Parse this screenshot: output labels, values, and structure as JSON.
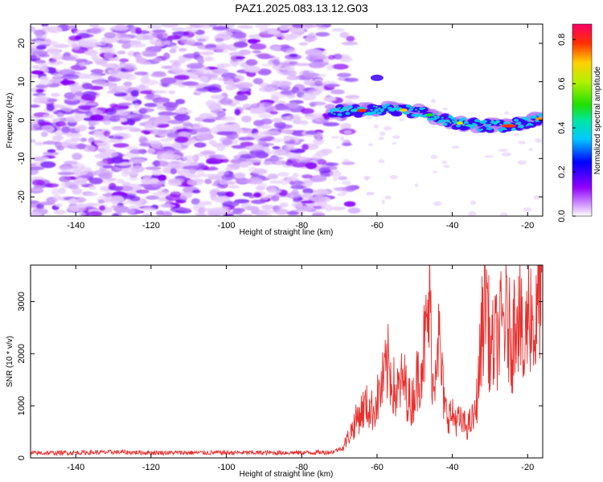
{
  "title": "PAZ1.2025.083.13.12.G03",
  "chart_data": [
    {
      "type": "heatmap",
      "xlabel": "Height of straight line (km)",
      "ylabel": "Frequency (Hz)",
      "xlim": [
        -152,
        -16
      ],
      "ylim": [
        -25,
        25
      ],
      "xticks": [
        -140,
        -120,
        -100,
        -80,
        -60,
        -40,
        -20
      ],
      "yticks": [
        -20,
        -10,
        0,
        10,
        20
      ],
      "colorbar": {
        "label": "Normalized spectral amplitude",
        "range": [
          0,
          0.87
        ],
        "ticks": [
          0.0,
          0.2,
          0.4,
          0.6,
          0.8
        ]
      },
      "features": {
        "noise_region_x": [
          -152,
          -72
        ],
        "signal_ridge": [
          {
            "x": -72,
            "y": 2.5
          },
          {
            "x": -64,
            "y": 2.5
          },
          {
            "x": -56,
            "y": 3
          },
          {
            "x": -48,
            "y": 2
          },
          {
            "x": -40,
            "y": -0.5
          },
          {
            "x": -32,
            "y": -1.5
          },
          {
            "x": -25,
            "y": -1.5
          },
          {
            "x": -16,
            "y": 0.5
          }
        ]
      }
    },
    {
      "type": "line",
      "xlabel": "Height of straight line (km)",
      "ylabel": "SNR (10 * v/v)",
      "xlim": [
        -152,
        -16
      ],
      "ylim": [
        0,
        3700
      ],
      "xticks": [
        -140,
        -120,
        -100,
        -80,
        -60,
        -40,
        -20
      ],
      "yticks": [
        0,
        1000,
        2000,
        3000
      ],
      "series": [
        {
          "color": "#e8312f",
          "points": [
            [
              -152,
              90
            ],
            [
              -140,
              100
            ],
            [
              -130,
              110
            ],
            [
              -120,
              100
            ],
            [
              -110,
              100
            ],
            [
              -100,
              100
            ],
            [
              -90,
              100
            ],
            [
              -80,
              100
            ],
            [
              -72,
              110
            ],
            [
              -69,
              200
            ],
            [
              -67,
              500
            ],
            [
              -65,
              800
            ],
            [
              -63,
              1000
            ],
            [
              -61,
              900
            ],
            [
              -59,
              1300
            ],
            [
              -57,
              1800
            ],
            [
              -55,
              1200
            ],
            [
              -53,
              1500
            ],
            [
              -51,
              1000
            ],
            [
              -49,
              1600
            ],
            [
              -47,
              2300
            ],
            [
              -46,
              3000
            ],
            [
              -45,
              1200
            ],
            [
              -44,
              2600
            ],
            [
              -42,
              900
            ],
            [
              -40,
              800
            ],
            [
              -38,
              700
            ],
            [
              -36,
              600
            ],
            [
              -34,
              800
            ],
            [
              -33,
              1500
            ],
            [
              -32,
              2600
            ],
            [
              -31,
              3350
            ],
            [
              -30,
              2000
            ],
            [
              -28,
              2300
            ],
            [
              -26,
              2700
            ],
            [
              -24,
              2200
            ],
            [
              -23,
              3100
            ],
            [
              -22,
              2700
            ],
            [
              -21,
              1700
            ],
            [
              -20,
              2900
            ],
            [
              -19,
              2800
            ],
            [
              -18,
              2300
            ],
            [
              -17,
              3200
            ],
            [
              -16,
              3650
            ]
          ]
        }
      ]
    }
  ]
}
